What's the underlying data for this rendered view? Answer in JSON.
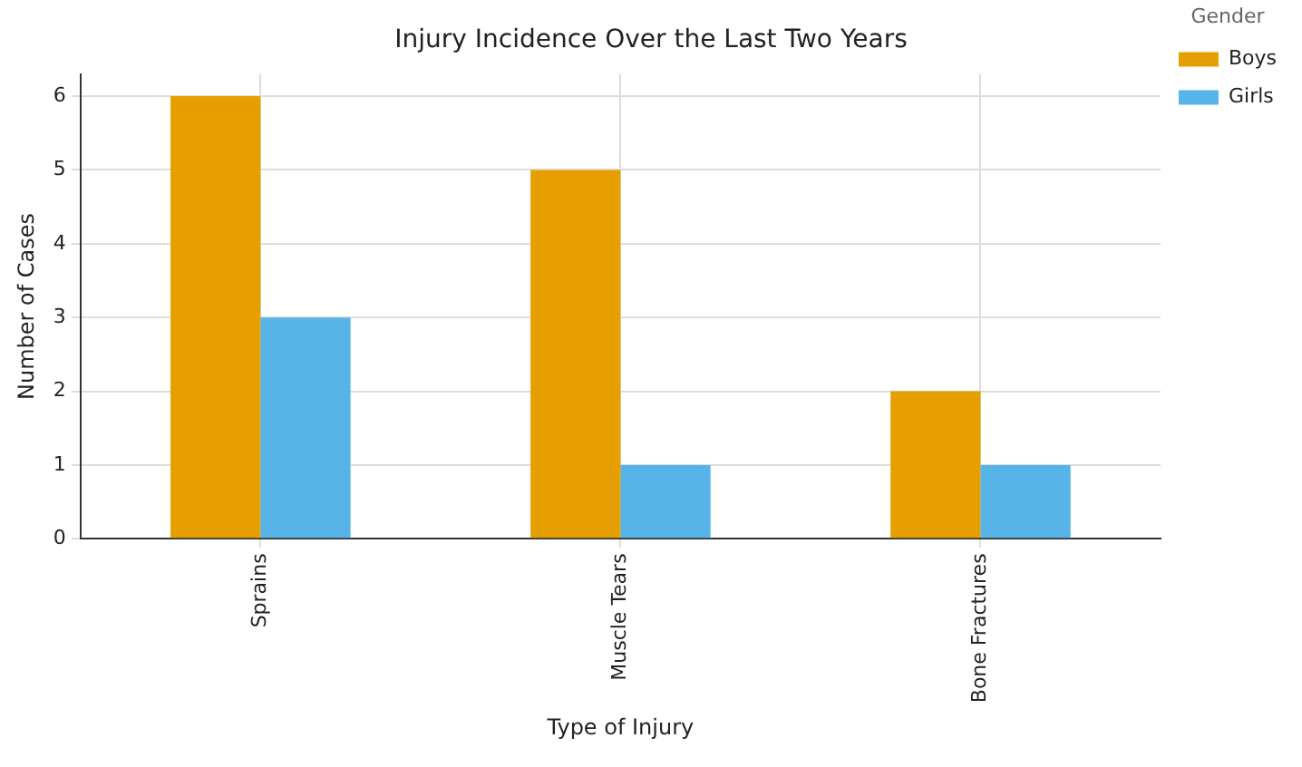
{
  "chart_data": {
    "type": "bar",
    "title": "Injury Incidence Over the Last Two Years",
    "xlabel": "Type of Injury",
    "ylabel": "Number of Cases",
    "legend_title": "Gender",
    "categories": [
      "Sprains",
      "Muscle Tears",
      "Bone Fractures"
    ],
    "series": [
      {
        "name": "Boys",
        "color": "#e69f00",
        "values": [
          6,
          5,
          2
        ]
      },
      {
        "name": "Girls",
        "color": "#56b4e9",
        "values": [
          3,
          1,
          1
        ]
      }
    ],
    "ylim": [
      0,
      6.3
    ],
    "yticks": [
      0,
      1,
      2,
      3,
      4,
      5,
      6
    ],
    "grid": true,
    "legend": "top right"
  }
}
